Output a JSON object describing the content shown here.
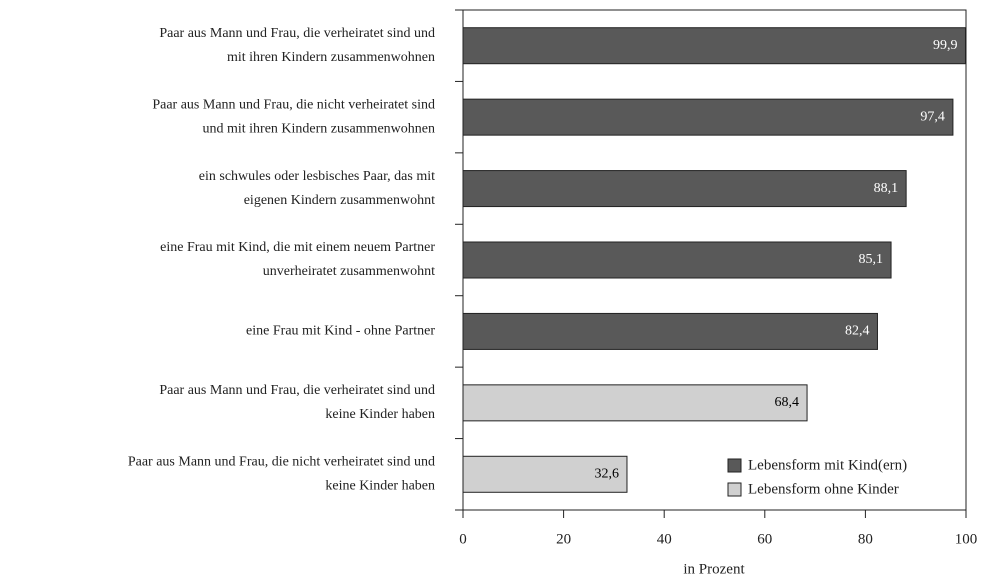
{
  "chart_data": {
    "type": "bar",
    "orientation": "horizontal",
    "categories": [
      [
        "Paar aus Mann und Frau, die verheiratet sind und",
        "mit ihren Kindern zusammenwohnen"
      ],
      [
        "Paar aus Mann und Frau, die nicht verheiratet sind",
        "und mit ihren Kindern zusammenwohnen"
      ],
      [
        "ein schwules oder lesbisches Paar, das mit",
        "eigenen Kindern zusammenwohnt"
      ],
      [
        "eine Frau mit Kind, die mit einem neuem Partner",
        "unverheiratet zusammenwohnt"
      ],
      [
        "eine Frau mit Kind - ohne Partner"
      ],
      [
        "Paar aus Mann und Frau, die verheiratet sind und",
        "keine Kinder haben"
      ],
      [
        "Paar aus Mann und Frau, die nicht verheiratet sind und",
        "keine Kinder haben"
      ]
    ],
    "series": [
      {
        "name": "Lebensform mit Kind(ern)",
        "color": "#595959",
        "label_color": "#ffffff",
        "values": [
          99.9,
          97.4,
          88.1,
          85.1,
          82.4,
          null,
          null
        ],
        "value_labels": [
          "99,9",
          "97,4",
          "88,1",
          "85,1",
          "82,4",
          null,
          null
        ]
      },
      {
        "name": "Lebensform ohne Kinder",
        "color": "#d0d0d0",
        "label_color": "#000000",
        "values": [
          null,
          null,
          null,
          null,
          null,
          68.4,
          32.6
        ],
        "value_labels": [
          null,
          null,
          null,
          null,
          null,
          "68,4",
          "32,6"
        ]
      }
    ],
    "xlabel": "in Prozent",
    "xlim": [
      0,
      100
    ],
    "xticks": [
      0,
      20,
      40,
      60,
      80,
      100
    ],
    "legend": "lower right"
  }
}
